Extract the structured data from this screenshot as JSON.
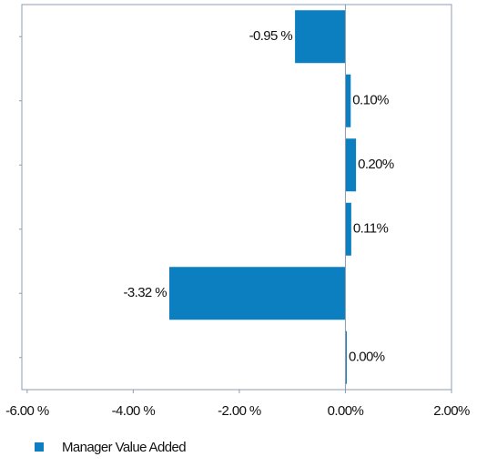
{
  "chart_data": {
    "type": "hbar",
    "categories": [
      null,
      null,
      null,
      null,
      null,
      null
    ],
    "series": [
      {
        "name": "Manager Value Added",
        "color": "#0b7fbf",
        "values": [
          -0.95,
          0.1,
          0.2,
          0.11,
          -3.32,
          0.0
        ],
        "value_labels": [
          "-0.95 %",
          "0.10%",
          "0.20%",
          "0.11%",
          "-3.32 %",
          "0.00%"
        ]
      }
    ],
    "xlim": [
      -6.1,
      2.0
    ],
    "xticks": [
      {
        "value": -6,
        "label": "-6.00 %"
      },
      {
        "value": -4,
        "label": "-4.00 %"
      },
      {
        "value": -2,
        "label": "-2.00 %"
      },
      {
        "value": 0,
        "label": "0.00%"
      },
      {
        "value": 2,
        "label": "2.00%"
      }
    ],
    "legend": "bottom-left"
  }
}
